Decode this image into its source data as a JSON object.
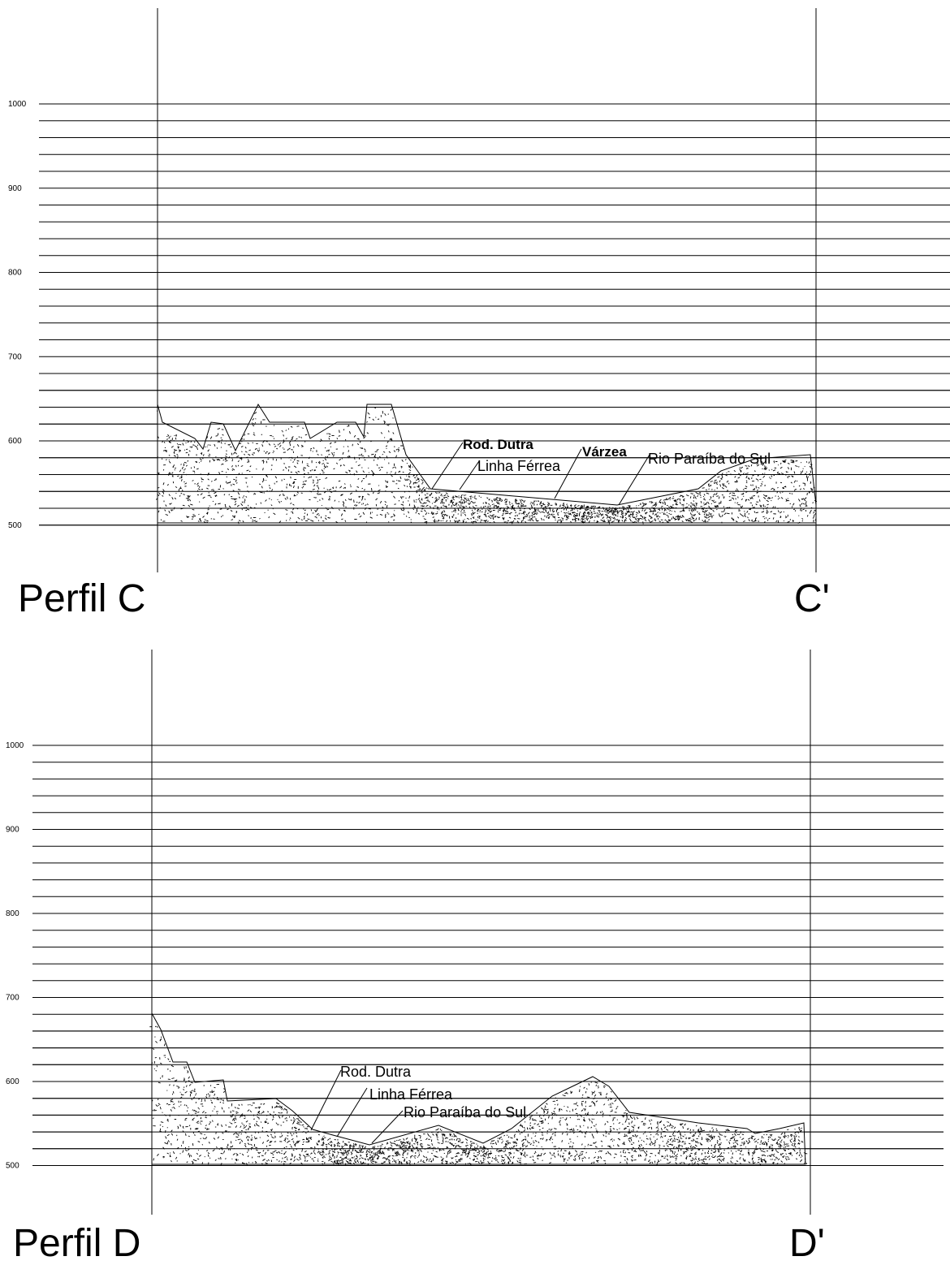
{
  "profiles": [
    {
      "id": "c",
      "title_left": "Perfil C",
      "title_right": "C'",
      "axis_labels": [
        "1000",
        "900",
        "800",
        "700",
        "600",
        "500"
      ],
      "annotations": [
        {
          "text": "Rod. Dutra",
          "bold": true
        },
        {
          "text": "Linha Férrea",
          "bold": false
        },
        {
          "text": "Várzea",
          "bold": true
        },
        {
          "text": "Rio Paraíba do Sul",
          "bold": false
        }
      ]
    },
    {
      "id": "d",
      "title_left": "Perfil D",
      "title_right": "D'",
      "axis_labels": [
        "1000",
        "900",
        "800",
        "700",
        "600",
        "500"
      ],
      "annotations": [
        {
          "text": "Rod. Dutra",
          "bold": false
        },
        {
          "text": "Linha Férrea",
          "bold": false
        },
        {
          "text": "Rio Paraíba do Sul",
          "bold": false
        }
      ]
    }
  ],
  "colors": {
    "line": "#000000",
    "background": "#ffffff"
  }
}
